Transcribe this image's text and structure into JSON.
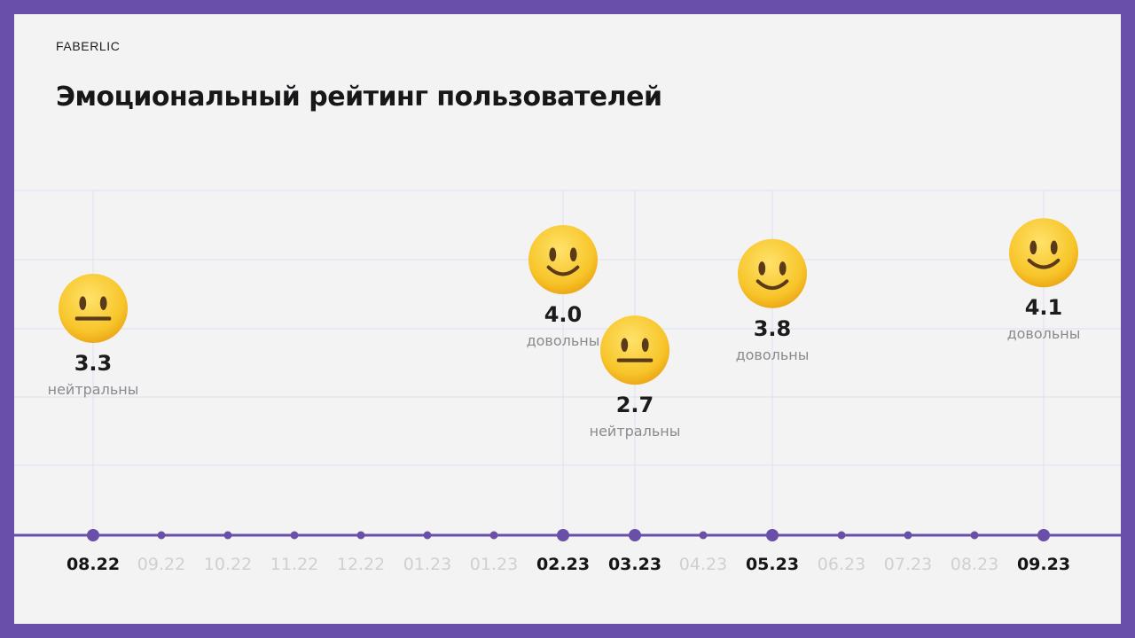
{
  "brand": "FABERLIC",
  "title": "Эмоциональный рейтинг пользователей",
  "colors": {
    "frame": "#6a4fa8",
    "background": "#f3f3f3",
    "axis": "#6a4fa8",
    "grid": "#e2def0",
    "tick_active": "#151518",
    "tick_inactive": "#d0d0d2",
    "emoji_face": "#f7c52a"
  },
  "chart_data": {
    "type": "scatter",
    "title": "Эмоциональный рейтинг пользователей",
    "xlabel": "",
    "ylabel": "",
    "grid": true,
    "x": [
      "08.22",
      "09.22",
      "10.22",
      "11.22",
      "12.22",
      "01.23",
      "01.23",
      "02.23",
      "03.23",
      "04.23",
      "05.23",
      "06.23",
      "07.23",
      "08.23",
      "09.23"
    ],
    "highlighted": [
      "08.22",
      "02.23",
      "03.23",
      "05.23",
      "09.23"
    ],
    "ratings": [
      3.3,
      null,
      null,
      null,
      null,
      null,
      null,
      4.0,
      2.7,
      null,
      3.8,
      null,
      null,
      null,
      4.1
    ],
    "value_labels": [
      "3.3",
      "",
      "",
      "",
      "",
      "",
      "",
      "4.0",
      "2.7",
      "",
      "3.8",
      "",
      "",
      "",
      "4.1"
    ],
    "sentiments": [
      "нейтральны",
      "",
      "",
      "",
      "",
      "",
      "",
      "довольны",
      "нейтральны",
      "",
      "довольны",
      "",
      "",
      "",
      "довольны"
    ],
    "emoji": [
      "neutral-face-icon",
      "",
      "",
      "",
      "",
      "",
      "",
      "slightly-smiling-face-icon",
      "neutral-face-icon",
      "",
      "slightly-smiling-face-icon",
      "",
      "",
      "",
      "slightly-smiling-face-icon"
    ]
  }
}
